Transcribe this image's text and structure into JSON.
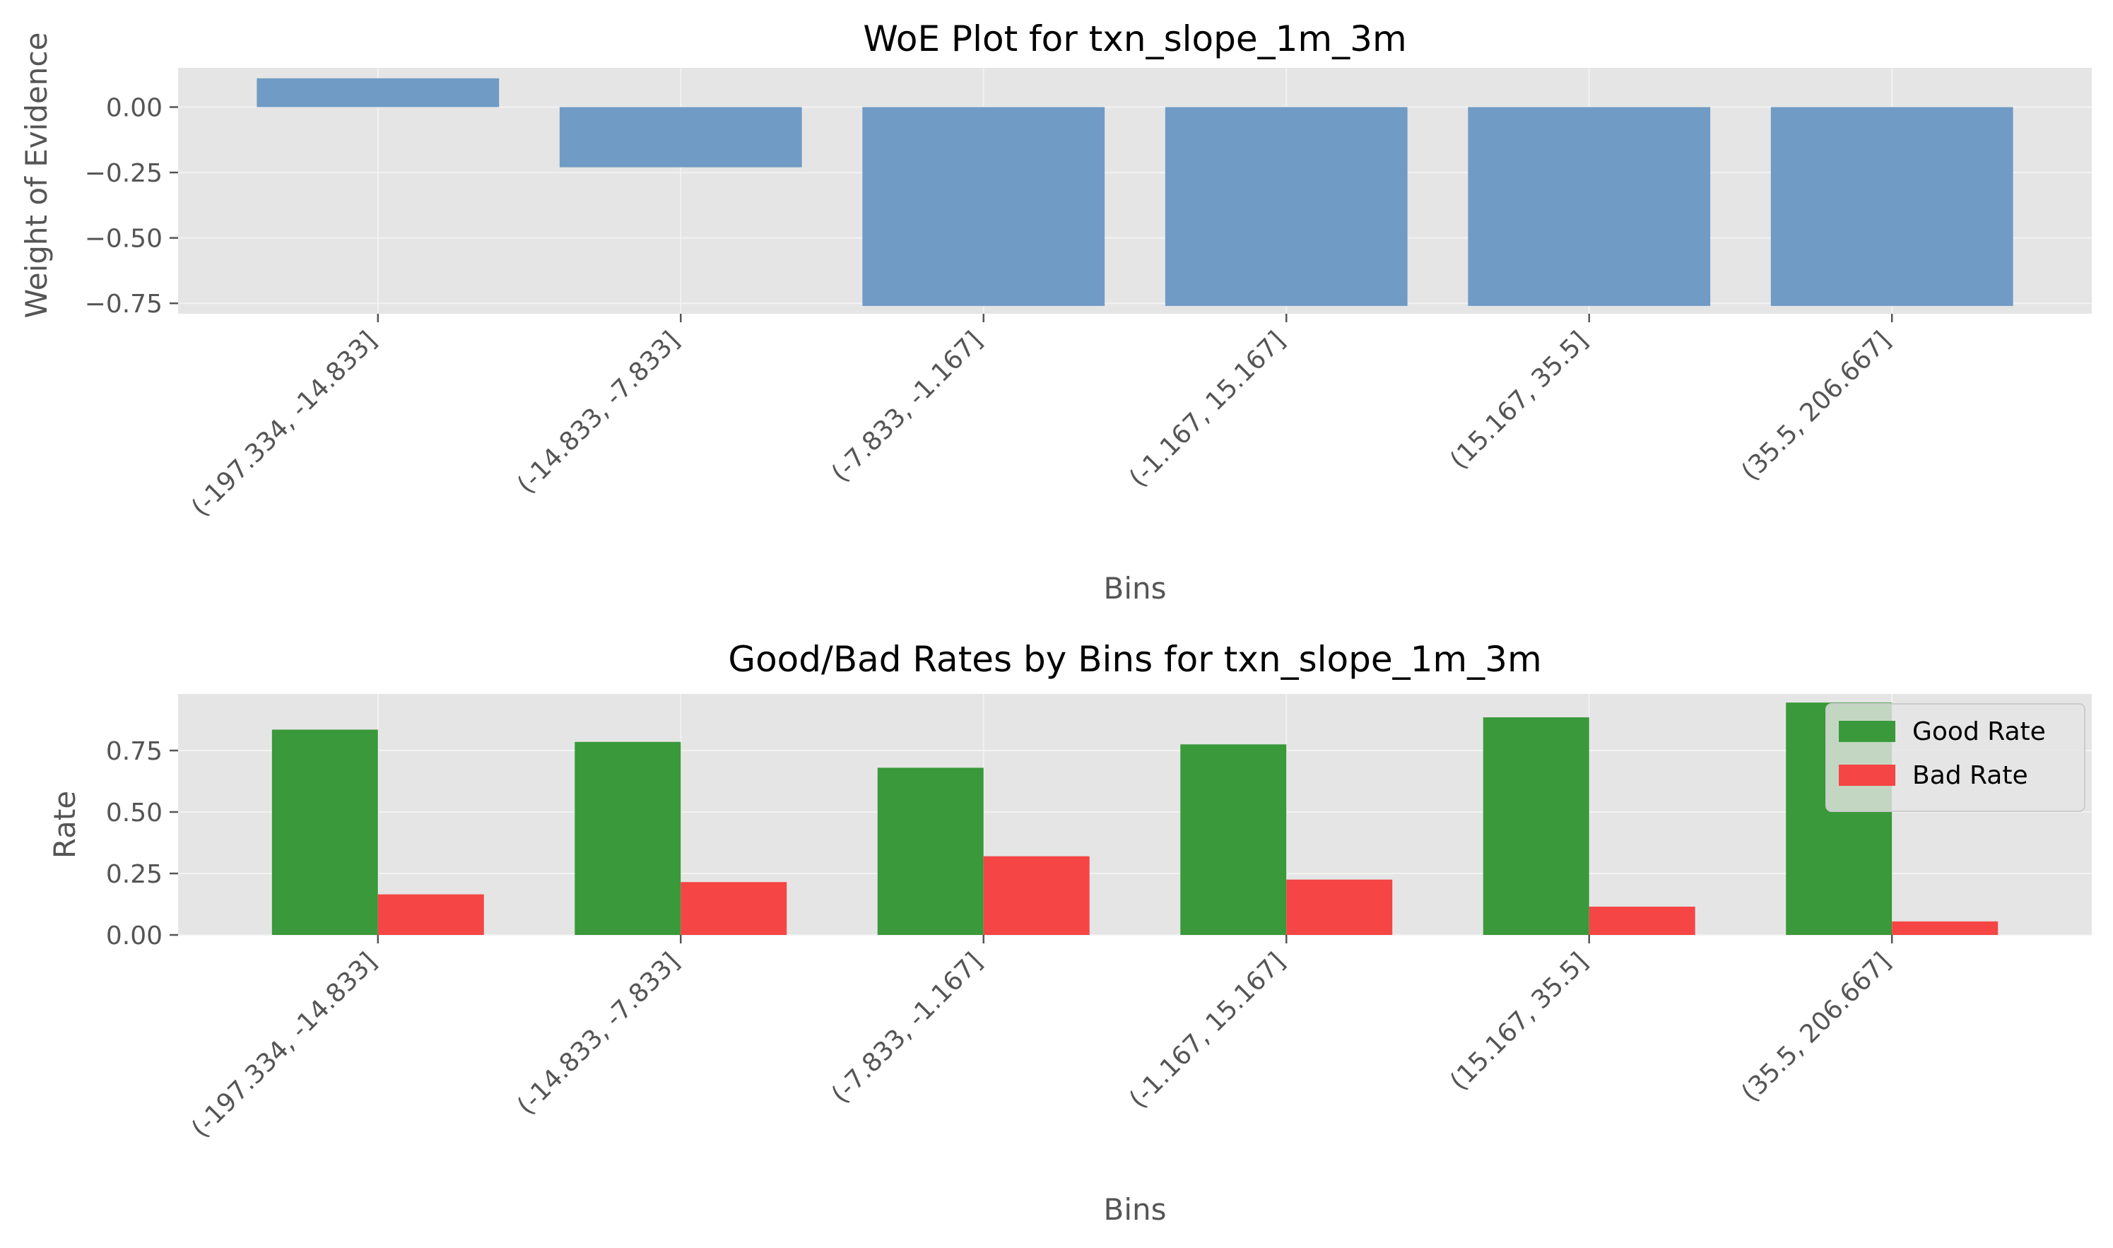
{
  "colors": {
    "woe_bar": "#6f9bc4",
    "good": "#3a993a",
    "bad": "#f54545",
    "axes_bg": "#e5e5e5",
    "grid": "#f2f2f2",
    "tick": "#555555"
  },
  "chart_data": [
    {
      "type": "bar",
      "title": "WoE Plot for txn_slope_1m_3m",
      "xlabel": "Bins",
      "ylabel": "Weight of Evidence",
      "categories": [
        "(-197.334, -14.833]",
        "(-14.833, -7.833]",
        "(-7.833, -1.167]",
        "(-1.167, 15.167]",
        "(15.167, 35.5]",
        "(35.5, 206.667]"
      ],
      "series": [
        {
          "values": [
            0.11,
            -0.23,
            -0.76,
            -0.76,
            -0.76,
            -0.76
          ]
        }
      ],
      "ylim": [
        -0.79,
        0.15
      ],
      "yticks": [
        0.0,
        -0.25,
        -0.5,
        -0.75
      ],
      "ytick_labels": [
        "0.00",
        "−0.25",
        "−0.50",
        "−0.75"
      ],
      "grid": true,
      "legend": "none"
    },
    {
      "type": "bar",
      "title": "Good/Bad Rates by Bins for txn_slope_1m_3m",
      "xlabel": "Bins",
      "ylabel": "Rate",
      "categories": [
        "(-197.334, -14.833]",
        "(-14.833, -7.833]",
        "(-7.833, -1.167]",
        "(-1.167, 15.167]",
        "(15.167, 35.5]",
        "(35.5, 206.667]"
      ],
      "series": [
        {
          "name": "Good Rate",
          "values": [
            0.835,
            0.785,
            0.68,
            0.775,
            0.885,
            0.945
          ]
        },
        {
          "name": "Bad Rate",
          "values": [
            0.165,
            0.215,
            0.32,
            0.225,
            0.115,
            0.055
          ]
        }
      ],
      "ylim": [
        0,
        0.98
      ],
      "yticks": [
        0.0,
        0.25,
        0.5,
        0.75
      ],
      "ytick_labels": [
        "0.00",
        "0.25",
        "0.50",
        "0.75"
      ],
      "grid": true,
      "legend": "top-right"
    }
  ]
}
